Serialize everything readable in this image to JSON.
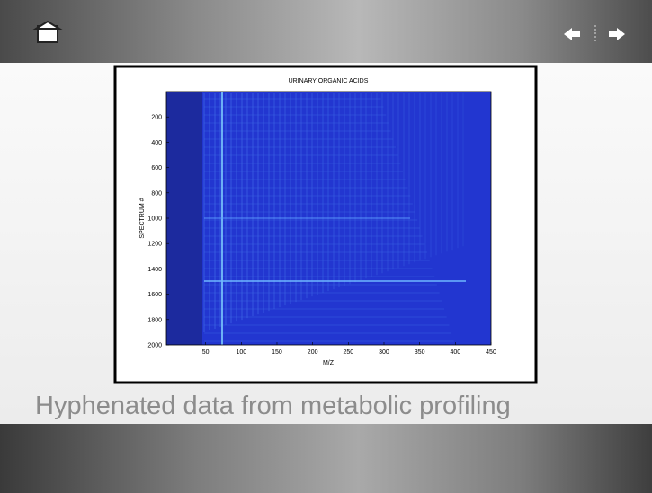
{
  "slide": {
    "caption": "Hyphenated data from metabolic profiling"
  },
  "chart_data": {
    "type": "heatmap",
    "title": "URINARY ORGANIC ACIDS",
    "x_label": "M/Z",
    "y_label": "SPECTRUM #",
    "xlim": [
      -5,
      450
    ],
    "xticks": [
      50,
      100,
      150,
      200,
      250,
      300,
      350,
      400,
      450
    ],
    "ylim": [
      0,
      2000
    ],
    "y_inverted": true,
    "yticks": [
      200,
      400,
      600,
      800,
      1000,
      1200,
      1400,
      1600,
      1800,
      2000
    ],
    "color": "#2236d0"
  }
}
